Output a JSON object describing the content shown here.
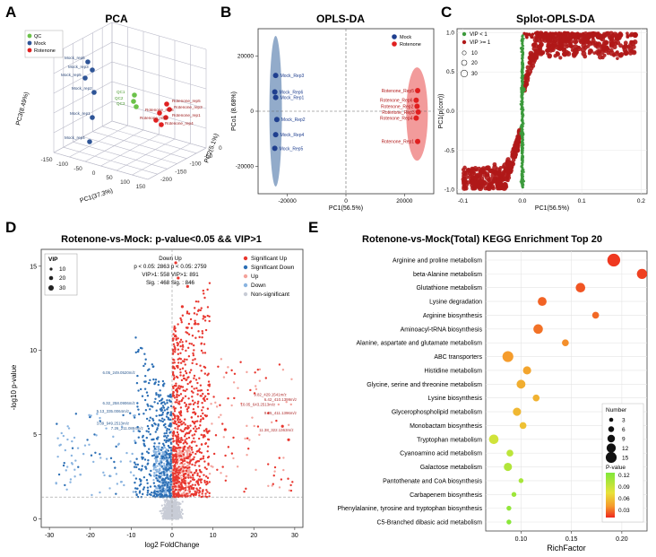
{
  "panels": {
    "A": {
      "letter": "A",
      "title": "PCA"
    },
    "B": {
      "letter": "B",
      "title": "OPLS-DA"
    },
    "C": {
      "letter": "C",
      "title": "Splot-OPLS-DA"
    },
    "D": {
      "letter": "D",
      "title": "Rotenone-vs-Mock: p-value<0.05 && VIP>1"
    },
    "E": {
      "letter": "E",
      "title": "Rotenone-vs-Mock(Total) KEGG Enrichment Top 20"
    }
  },
  "chart_data": [
    {
      "id": "A",
      "type": "scatter",
      "title": "PCA",
      "axes": {
        "x": "PC1(37.3%)",
        "y": "PC3(8.49%)",
        "z": "PC2(5.1%)"
      },
      "x_ticks": [
        "-150",
        "-100",
        "-50",
        "0",
        "50",
        "100",
        "150"
      ],
      "z_ticks": [
        "-200",
        "-150",
        "-100",
        "-50",
        "0"
      ],
      "legend": [
        "QC",
        "Mock",
        "Rotenone"
      ],
      "colors": {
        "QC": "#6cc24a",
        "Mock": "#2f5597",
        "Rotenone": "#e02020"
      },
      "series": [
        {
          "name": "Mock",
          "labels": [
            "Mock_rep6",
            "Mock_rep3",
            "Mock_rep5",
            "Mock_rep2",
            "Mock_rep1",
            "Mock_rep4"
          ]
        },
        {
          "name": "QC",
          "labels": [
            "QC1",
            "QC2",
            "QC3"
          ]
        },
        {
          "name": "Rotenone",
          "labels": [
            "Rotenone_rep5",
            "Rotenone_rep3",
            "Rotenone_rep6",
            "Rotenone_rep1",
            "Rotenone_rep2",
            "Rotenone_rep4"
          ]
        }
      ]
    },
    {
      "id": "B",
      "type": "scatter",
      "title": "OPLS-DA",
      "xlabel": "PC1(56.5%)",
      "ylabel": "PCo1 (8.68%)",
      "x_ticks": [
        "-20000",
        "0",
        "20000"
      ],
      "y_ticks": [
        "-20000",
        "0",
        "20000"
      ],
      "xlim": [
        -30000,
        30000
      ],
      "ylim": [
        -30000,
        30000
      ],
      "legend": [
        "Mock",
        "Rotenone"
      ],
      "series": [
        {
          "name": "Mock",
          "color": "#1f3f8f",
          "points": [
            {
              "label": "Mock_Rep3",
              "x": -24000,
              "y": 13000
            },
            {
              "label": "Mock_Rep6",
              "x": -24300,
              "y": 7000
            },
            {
              "label": "Mock_Rep1",
              "x": -24000,
              "y": 5000
            },
            {
              "label": "Mock_Rep2",
              "x": -23600,
              "y": -3000
            },
            {
              "label": "Mock_Rep4",
              "x": -24000,
              "y": -8500
            },
            {
              "label": "Mock_Rep5",
              "x": -24300,
              "y": -13500
            }
          ]
        },
        {
          "name": "Rotenone",
          "color": "#e02020",
          "points": [
            {
              "label": "Rotenone_Rep5",
              "x": 24500,
              "y": 7500
            },
            {
              "label": "Rotenone_Rep6",
              "x": 24000,
              "y": 4000
            },
            {
              "label": "Rotenone_Rep2",
              "x": 24300,
              "y": 1800
            },
            {
              "label": "Rotenone_Rep3",
              "x": 24700,
              "y": -300
            },
            {
              "label": "Rotenone_Rep4",
              "x": 24000,
              "y": -2500
            },
            {
              "label": "Rotenone_Rep1",
              "x": 24500,
              "y": -11000
            }
          ]
        }
      ]
    },
    {
      "id": "C",
      "type": "scatter",
      "title": "Splot-OPLS-DA",
      "xlabel": "PC1(56.5%)",
      "ylabel": "PC1(p(corr))",
      "x_ticks": [
        "-0.1",
        "0.0",
        "0.1",
        "0.2"
      ],
      "y_ticks": [
        "-1.0",
        "-0.5",
        "0.0",
        "0.5",
        "1.0"
      ],
      "xlim": [
        -0.11,
        0.21
      ],
      "ylim": [
        -1.05,
        1.05
      ],
      "legend": [
        "VIP < 1",
        "VIP >= 1"
      ],
      "size_legend": [
        "10",
        "20",
        "30"
      ],
      "colors": {
        "VIP < 1": "#3c9a3c",
        "VIP >= 1": "#b01818"
      }
    },
    {
      "id": "D",
      "type": "scatter",
      "title": "Rotenone-vs-Mock: p-value<0.05 && VIP>1",
      "xlabel": "log2 FoldChange",
      "ylabel": "-log10 p-value",
      "x_ticks": [
        "-30",
        "-20",
        "-10",
        "0",
        "10",
        "20",
        "30"
      ],
      "y_ticks": [
        "0",
        "5",
        "10",
        "15"
      ],
      "xlim": [
        -32,
        32
      ],
      "ylim": [
        -0.5,
        16
      ],
      "vip_legend": {
        "title": "VIP",
        "sizes": [
          "10",
          "20",
          "30"
        ]
      },
      "stats": {
        "header": "Down  Up",
        "line1": "p < 0.05: 2863  p < 0.05: 2759",
        "line2": "VIP>1: 558  VIP>1: 891",
        "line3": "Sig. : 468  Sig. : 846"
      },
      "legend": [
        "Significant Up",
        "Significant Down",
        "Up",
        "Down",
        "Non-significant"
      ],
      "colors": {
        "Significant Up": "#e8372f",
        "Significant Down": "#2c6fb5",
        "Up": "#f4a39c",
        "Down": "#8ab4e0",
        "Non-significant": "#c8ccd6"
      },
      "annotations": [
        {
          "text": "9.82_429.1541m/z",
          "x": 24,
          "y": 7.3
        },
        {
          "text": "10.05_643.2513m/z",
          "x": 21,
          "y": 6.7
        },
        {
          "text": "6.42_410.1399m/z",
          "x": 26.5,
          "y": 7.0
        },
        {
          "text": "9.35_411.1396m/z",
          "x": 26.5,
          "y": 6.2
        },
        {
          "text": "11.38_322.1363m/z",
          "x": 25.5,
          "y": 5.2
        },
        {
          "text": "6.05_249.0520m/z",
          "x": -13,
          "y": 8.6
        },
        {
          "text": "6.32_258.0906m/z",
          "x": -13,
          "y": 6.8
        },
        {
          "text": "5.13_335.0064m/z",
          "x": -14.5,
          "y": 6.3
        },
        {
          "text": "3.09_949.2513m/z",
          "x": -14.5,
          "y": 5.6
        },
        {
          "text": "7.26_211.0894m/z",
          "x": -11,
          "y": 5.3
        }
      ]
    },
    {
      "id": "E",
      "type": "scatter",
      "title": "Rotenone-vs-Mock(Total) KEGG Enrichment Top 20",
      "xlabel": "RichFactor",
      "x_ticks": [
        "0.10",
        "0.15",
        "0.20"
      ],
      "xlim": [
        0.065,
        0.225
      ],
      "size_legend": {
        "title": "Number",
        "values": [
          3,
          6,
          9,
          12,
          15
        ]
      },
      "color_legend": {
        "title": "P-value",
        "ticks": [
          "0.12",
          "0.09",
          "0.06",
          "0.03"
        ],
        "range": [
          0.0,
          0.13
        ]
      },
      "categories": [
        "Arginine and proline metabolism",
        "beta-Alanine metabolism",
        "Glutathione metabolism",
        "Lysine degradation",
        "Arginine biosynthesis",
        "Aminoacyl-tRNA biosynthesis",
        "Alanine, aspartate and glutamate metabolism",
        "ABC transporters",
        "Histidine metabolism",
        "Glycine, serine and threonine metabolism",
        "Lysine biosynthesis",
        "Glycerophospholipid metabolism",
        "Monobactam biosynthesis",
        "Tryptophan metabolism",
        "Cyanoamino acid metabolism",
        "Galactose metabolism",
        "Pantothenate and CoA biosynthesis",
        "Carbapenem biosynthesis",
        "Phenylalanine, tyrosine and tryptophan biosynthesis",
        "C5-Branched dibasic acid metabolism"
      ],
      "points": [
        {
          "category": "Arginine and proline metabolism",
          "x": 0.192,
          "number": 15,
          "pvalue": 0.005
        },
        {
          "category": "beta-Alanine metabolism",
          "x": 0.22,
          "number": 11,
          "pvalue": 0.008
        },
        {
          "category": "Glutathione metabolism",
          "x": 0.159,
          "number": 10,
          "pvalue": 0.015
        },
        {
          "category": "Lysine degradation",
          "x": 0.121,
          "number": 9,
          "pvalue": 0.02
        },
        {
          "category": "Arginine biosynthesis",
          "x": 0.174,
          "number": 6,
          "pvalue": 0.022
        },
        {
          "category": "Aminoacyl-tRNA biosynthesis",
          "x": 0.117,
          "number": 10,
          "pvalue": 0.025
        },
        {
          "category": "Alanine, aspartate and glutamate metabolism",
          "x": 0.144,
          "number": 6,
          "pvalue": 0.035
        },
        {
          "category": "ABC transporters",
          "x": 0.087,
          "number": 12,
          "pvalue": 0.04
        },
        {
          "category": "Histidine metabolism",
          "x": 0.106,
          "number": 8,
          "pvalue": 0.045
        },
        {
          "category": "Glycine, serine and threonine metabolism",
          "x": 0.1,
          "number": 9,
          "pvalue": 0.05
        },
        {
          "category": "Lysine biosynthesis",
          "x": 0.115,
          "number": 6,
          "pvalue": 0.052
        },
        {
          "category": "Glycerophospholipid metabolism",
          "x": 0.096,
          "number": 8,
          "pvalue": 0.055
        },
        {
          "category": "Monobactam biosynthesis",
          "x": 0.102,
          "number": 6,
          "pvalue": 0.06
        },
        {
          "category": "Tryptophan metabolism",
          "x": 0.073,
          "number": 10,
          "pvalue": 0.09
        },
        {
          "category": "Cyanoamino acid metabolism",
          "x": 0.089,
          "number": 6,
          "pvalue": 0.1
        },
        {
          "category": "Galactose metabolism",
          "x": 0.087,
          "number": 8,
          "pvalue": 0.105
        },
        {
          "category": "Pantothenate and CoA biosynthesis",
          "x": 0.1,
          "number": 3,
          "pvalue": 0.11
        },
        {
          "category": "Carbapenem biosynthesis",
          "x": 0.093,
          "number": 3,
          "pvalue": 0.115
        },
        {
          "category": "Phenylalanine, tyrosine and tryptophan biosynthesis",
          "x": 0.088,
          "number": 3,
          "pvalue": 0.12
        },
        {
          "category": "C5-Branched dibasic acid metabolism",
          "x": 0.088,
          "number": 3,
          "pvalue": 0.125
        }
      ]
    }
  ]
}
